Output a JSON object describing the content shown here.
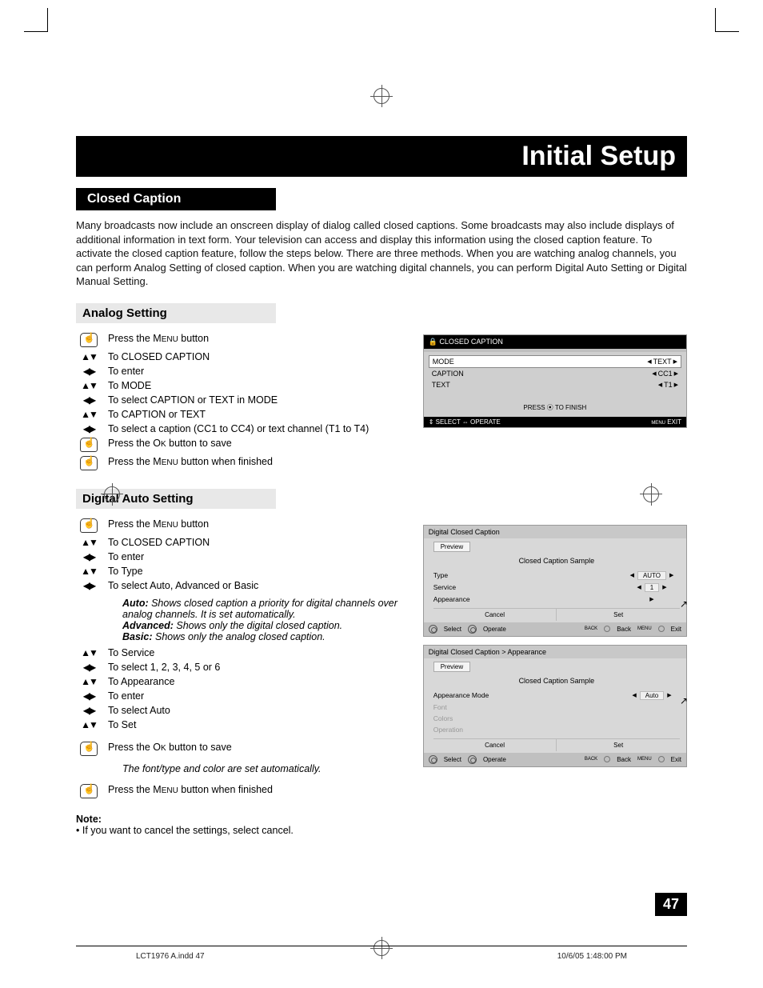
{
  "page": {
    "main_title": "Initial Setup",
    "section_heading": "Closed Caption",
    "intro_text": "Many broadcasts now include an onscreen display of dialog called closed captions. Some broadcasts may also include displays of additional information in text form. Your television can access and display this information using the closed caption feature. To activate the closed caption feature, follow the steps below.  There are three methods.  When you are watching analog channels, you can perform Analog Setting of closed caption.  When you are watching digital channels, you can perform Digital Auto Setting or Digital Manual Setting.",
    "page_number": "47",
    "footer_left": "LCT1976 A.indd   47",
    "footer_right": "10/6/05   1:48:00 PM"
  },
  "analog": {
    "heading": "Analog Setting",
    "steps": [
      {
        "icon": "hand",
        "text": "Press the MENU button"
      },
      {
        "icon": "ud",
        "text": "To CLOSED CAPTION"
      },
      {
        "icon": "lr",
        "text": "To enter"
      },
      {
        "icon": "ud",
        "text": "To MODE"
      },
      {
        "icon": "lr",
        "text": "To select CAPTION or TEXT in MODE"
      },
      {
        "icon": "ud",
        "text": "To CAPTION or TEXT"
      },
      {
        "icon": "lr",
        "text": "To select a caption (CC1 to CC4) or text channel (T1 to T4)"
      },
      {
        "icon": "hand",
        "text": "Press the OK button to save"
      },
      {
        "icon": "hand",
        "text": "Press the MENU button when finished"
      }
    ]
  },
  "osd1": {
    "title": "CLOSED CAPTION",
    "rows": [
      {
        "label": "MODE",
        "value": "TEXT",
        "selected": true
      },
      {
        "label": "CAPTION",
        "value": "CC1",
        "selected": false
      },
      {
        "label": "TEXT",
        "value": "T1",
        "selected": false
      }
    ],
    "finish": "PRESS ⦿ TO FINISH",
    "footer_left": "⇕ SELECT ⇔ OPERATE",
    "footer_right": "EXIT",
    "colors": {
      "bg": "#cfcfcf",
      "title_bg": "#000000",
      "title_fg": "#ffffff",
      "sel_bg": "#ffffff"
    }
  },
  "digital": {
    "heading": "Digital Auto Setting",
    "steps1": [
      {
        "icon": "hand",
        "text": "Press the MENU button"
      },
      {
        "icon": "ud",
        "text": "To CLOSED CAPTION"
      },
      {
        "icon": "lr",
        "text": "To enter"
      },
      {
        "icon": "ud",
        "text": "To Type"
      },
      {
        "icon": "lr",
        "text": "To select Auto, Advanced or Basic"
      }
    ],
    "defs": [
      {
        "term": "Auto:",
        "desc": "Shows closed caption a priority for digital channels over analog channels.  It is set automatically."
      },
      {
        "term": "Advanced:",
        "desc": "Shows only the digital closed caption."
      },
      {
        "term": "Basic:",
        "desc": "Shows only the analog closed caption."
      }
    ],
    "steps2": [
      {
        "icon": "ud",
        "text": "To Service"
      },
      {
        "icon": "lr",
        "text": "To select 1, 2, 3, 4, 5 or 6"
      },
      {
        "icon": "ud",
        "text": "To Appearance"
      },
      {
        "icon": "lr",
        "text": "To enter"
      },
      {
        "icon": "lr",
        "text": "To select Auto"
      },
      {
        "icon": "ud",
        "text": "To Set"
      }
    ],
    "steps3": [
      {
        "icon": "hand",
        "text": "Press the OK button to save"
      }
    ],
    "auto_note": "The font/type and color are set automatically.",
    "steps4": [
      {
        "icon": "hand",
        "text": "Press the MENU button when finished"
      }
    ],
    "note_label": "Note:",
    "note_text": "If you want to cancel the settings, select cancel."
  },
  "osdD1": {
    "title": "Digital Closed Caption",
    "preview": "Preview",
    "sample": "Closed Caption Sample",
    "rows": [
      {
        "label": "Type",
        "val": "AUTO",
        "arrows": true
      },
      {
        "label": "Service",
        "val": "1",
        "arrows": true
      },
      {
        "label": "Appearance",
        "val": "",
        "arrows": false,
        "cursor": true
      }
    ],
    "cancel": "Cancel",
    "set": "Set",
    "footer": [
      "Select",
      "Operate",
      "Back",
      "Exit"
    ],
    "footer_small": [
      "",
      "",
      "BACK",
      "MENU"
    ]
  },
  "osdD2": {
    "title": "Digital Closed Caption  >  Appearance",
    "preview": "Preview",
    "sample": "Closed Caption Sample",
    "rows": [
      {
        "label": "Appearance Mode",
        "val": "Auto",
        "arrows": true,
        "cursor": true
      },
      {
        "label": "Font",
        "dim": true
      },
      {
        "label": "Colors",
        "dim": true
      },
      {
        "label": "Operation",
        "dim": true
      }
    ],
    "cancel": "Cancel",
    "set": "Set",
    "footer": [
      "Select",
      "Operate",
      "Back",
      "Exit"
    ],
    "footer_small": [
      "",
      "",
      "BACK",
      "MENU"
    ]
  }
}
